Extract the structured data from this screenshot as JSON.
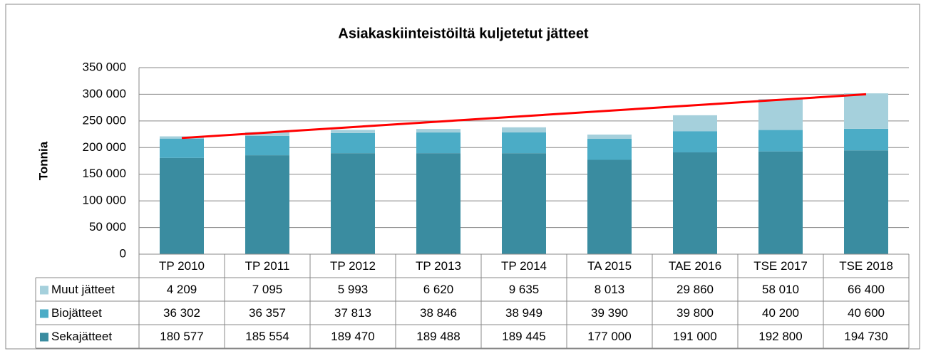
{
  "chart_data": {
    "type": "bar",
    "stacked": true,
    "title": "Asiakaskiinteistöiltä kuljetetut jätteet",
    "y_label": "Tonnia",
    "categories": [
      "TP 2010",
      "TP 2011",
      "TP 2012",
      "TP 2013",
      "TP 2014",
      "TA 2015",
      "TAE 2016",
      "TSE 2017",
      "TSE 2018"
    ],
    "series": [
      {
        "name": "Muut jätteet",
        "color": "#a5d0dc",
        "values": [
          4209,
          7095,
          5993,
          6620,
          9635,
          8013,
          29860,
          58010,
          66400
        ],
        "value_labels": [
          "4 209",
          "7 095",
          "5 993",
          "6 620",
          "9 635",
          "8 013",
          "29 860",
          "58 010",
          "66 400"
        ]
      },
      {
        "name": "Biojätteet",
        "color": "#4bacc6",
        "values": [
          36302,
          36357,
          37813,
          38846,
          38949,
          39390,
          39800,
          40200,
          40600
        ],
        "value_labels": [
          "36 302",
          "36 357",
          "37 813",
          "38 846",
          "38 949",
          "39 390",
          "39 800",
          "40 200",
          "40 600"
        ]
      },
      {
        "name": "Sekajätteet",
        "color": "#3a8ca0",
        "values": [
          180577,
          185554,
          189470,
          189488,
          189445,
          177000,
          191000,
          192800,
          194730
        ],
        "value_labels": [
          "180 577",
          "185 554",
          "189 470",
          "189 488",
          "189 445",
          "177 000",
          "191 000",
          "192 800",
          "194 730"
        ]
      }
    ],
    "trend": {
      "color": "#ff0000",
      "values": [
        218000,
        300000
      ]
    },
    "ylim": [
      0,
      350000
    ],
    "yticks": [
      0,
      {
        "value": 50000,
        "label": "50 000"
      },
      {
        "value": 100000,
        "label": "100 000"
      },
      {
        "value": 150000,
        "label": "150 000"
      },
      {
        "value": 200000,
        "label": "200 000"
      },
      {
        "value": 250000,
        "label": "250 000"
      },
      {
        "value": 300000,
        "label": "300 000"
      },
      {
        "value": 350000,
        "label": "350 000"
      }
    ],
    "grid": true
  }
}
